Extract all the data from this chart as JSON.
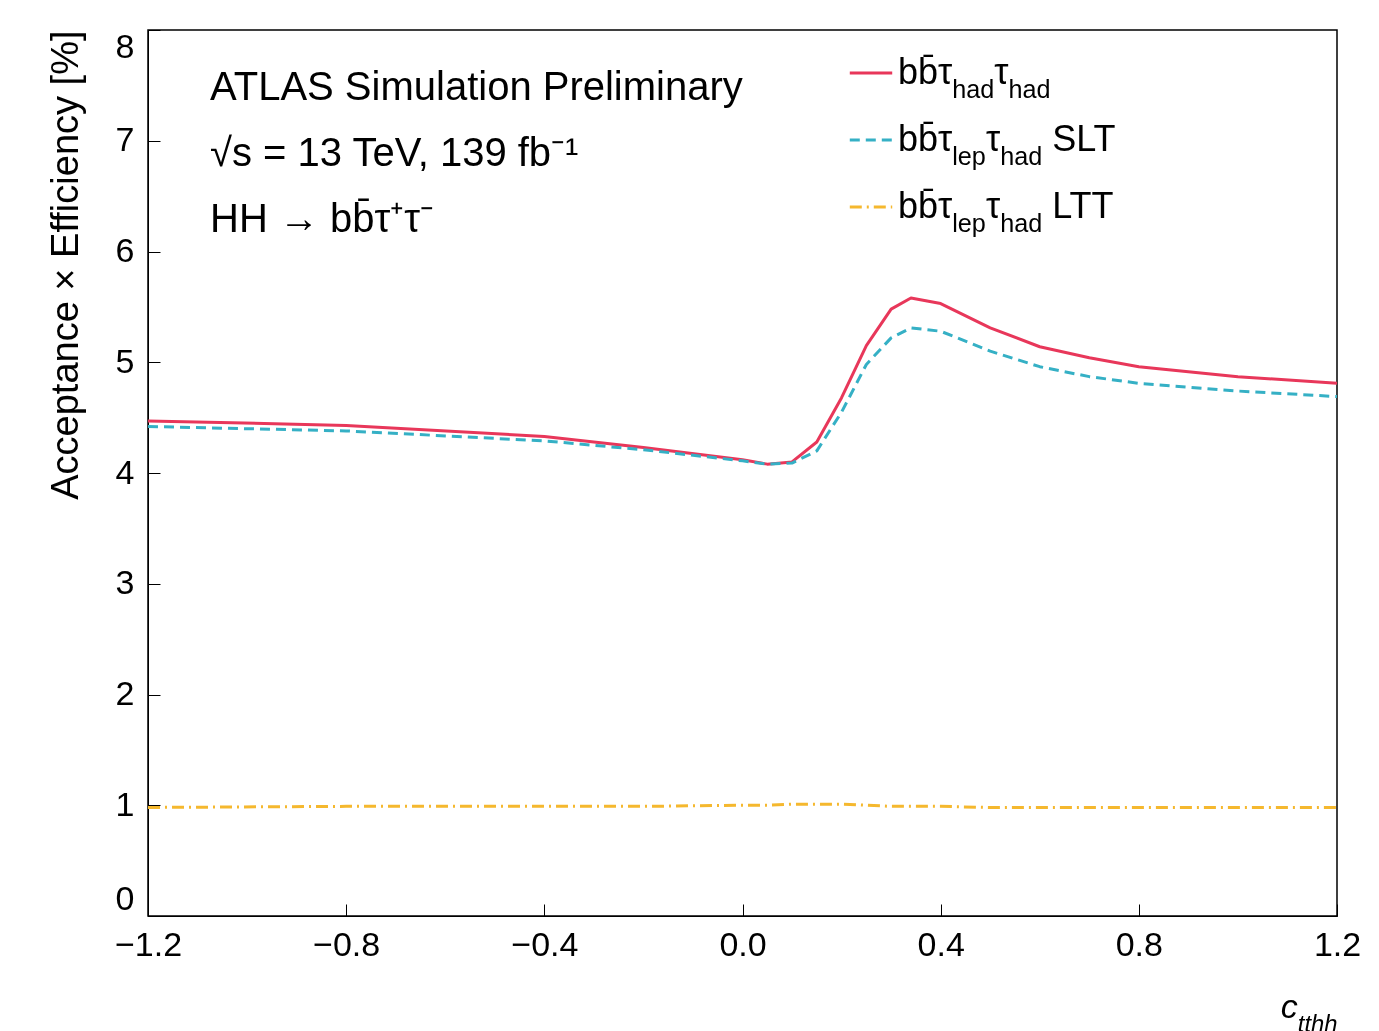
{
  "chart_data": {
    "type": "line",
    "xlabel": "c$_{tthh}$",
    "ylabel": "Acceptance × Efficiency [%]",
    "annotations": [
      "ATLAS Simulation Preliminary",
      "√s = 13 TeV, 139 fb⁻¹",
      "HH → bb̄τ⁺τ⁻"
    ],
    "x": [
      -1.2,
      -0.8,
      -0.4,
      -0.2,
      0,
      0.05,
      0.1,
      0.15,
      0.2,
      0.25,
      0.3,
      0.34,
      0.4,
      0.5,
      0.6,
      0.7,
      0.8,
      1.0,
      1.2
    ],
    "series": [
      {
        "name": "bb̄τ$_{had}$τ$_{had}$",
        "color": "#e8375a",
        "line_style": "solid",
        "values": [
          4.47,
          4.43,
          4.33,
          4.23,
          4.12,
          4.08,
          4.1,
          4.28,
          4.68,
          5.15,
          5.48,
          5.58,
          5.53,
          5.31,
          5.14,
          5.04,
          4.96,
          4.87,
          4.81
        ]
      },
      {
        "name": "bb̄τ$_{lep}$τ$_{had}$ SLT",
        "color": "#35b0c5",
        "line_style": "dashed",
        "values": [
          4.42,
          4.38,
          4.29,
          4.21,
          4.11,
          4.08,
          4.09,
          4.2,
          4.55,
          4.98,
          5.22,
          5.31,
          5.28,
          5.1,
          4.96,
          4.87,
          4.81,
          4.74,
          4.69
        ]
      },
      {
        "name": "bb̄τ$_{lep}$τ$_{had}$ LTT",
        "color": "#f5b82e",
        "line_style": "dashdot",
        "values": [
          0.98,
          0.99,
          0.99,
          0.99,
          1.0,
          1.0,
          1.01,
          1.01,
          1.01,
          1.0,
          0.99,
          0.99,
          0.99,
          0.98,
          0.98,
          0.98,
          0.98,
          0.98,
          0.98
        ]
      }
    ],
    "xlim": [
      -1.2,
      1.2
    ],
    "xticks": [
      {
        "value": -1.2,
        "label": "−1.2"
      },
      {
        "value": -0.8,
        "label": "−0.8"
      },
      {
        "value": -0.4,
        "label": "−0.4"
      },
      {
        "value": 0,
        "label": "0.0"
      },
      0.4,
      0.8,
      1.2
    ],
    "ylim": [
      0,
      8
    ],
    "yticks": [
      0,
      1,
      2,
      3,
      4,
      5,
      6,
      7,
      8
    ],
    "grid": false,
    "legend": "top right"
  }
}
